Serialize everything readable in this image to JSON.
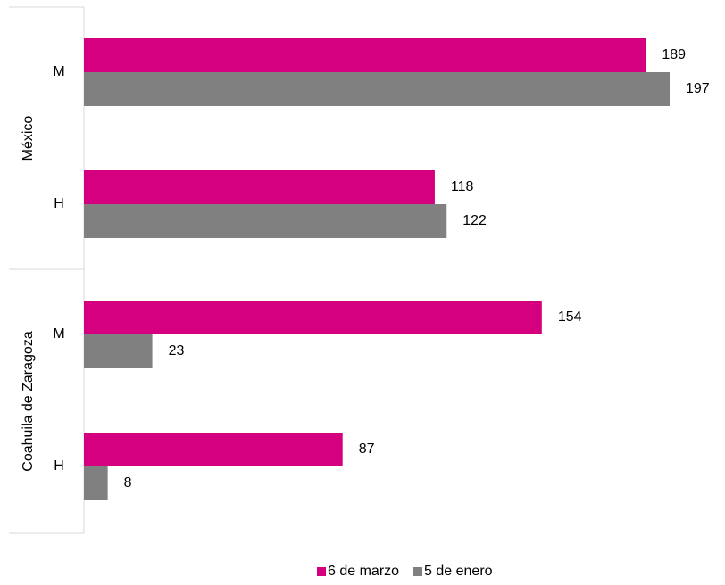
{
  "chart_data": {
    "type": "bar",
    "orientation": "horizontal",
    "groups": [
      {
        "label": "México",
        "categories": [
          "M",
          "H"
        ]
      },
      {
        "label": "Coahuila de Zaragoza",
        "categories": [
          "M",
          "H"
        ]
      }
    ],
    "series": [
      {
        "name": "6 de marzo",
        "color": "#d4007f",
        "values": [
          189,
          118,
          154,
          87
        ]
      },
      {
        "name": "5 de enero",
        "color": "#808080",
        "values": [
          197,
          122,
          23,
          8
        ]
      }
    ],
    "xlim": [
      0,
      200
    ],
    "grid": false,
    "legend_position": "bottom",
    "data_labels": true
  }
}
